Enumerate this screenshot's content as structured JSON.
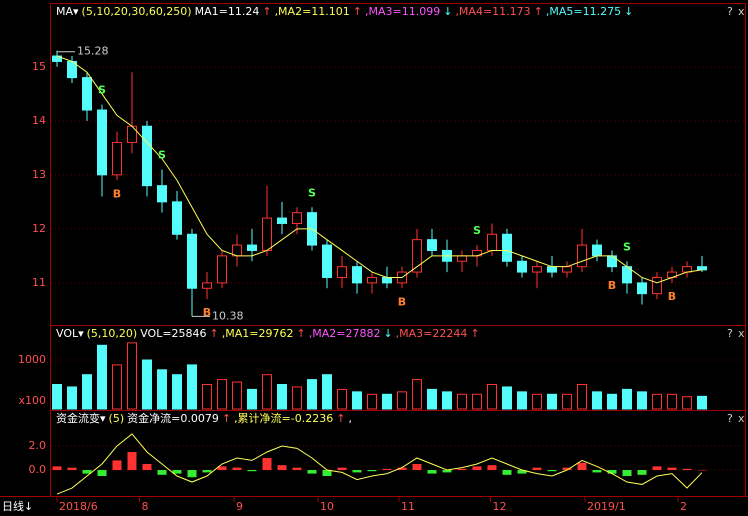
{
  "chart_data": [
    {
      "type": "candlestick",
      "header": [
        {
          "text": "MA▾",
          "color": "#ffffff"
        },
        {
          "text": "(5,10,20,30,60,250)",
          "color": "#ffff54"
        },
        {
          "text": "MA1=11.24",
          "color": "#ffffff"
        },
        {
          "text": "↑",
          "color": "#ff5050"
        },
        {
          "text": ",MA2=11.101",
          "color": "#ffff54"
        },
        {
          "text": "↑",
          "color": "#ff5050"
        },
        {
          "text": ",MA3=11.099",
          "color": "#ff54ff"
        },
        {
          "text": "↓",
          "color": "#54fcfc"
        },
        {
          "text": ",MA4=11.173",
          "color": "#ff5050"
        },
        {
          "text": "↑",
          "color": "#ff5050"
        },
        {
          "text": ",MA5=11.275",
          "color": "#54fcfc"
        },
        {
          "text": "↓",
          "color": "#54fcfc"
        }
      ],
      "ohlc": [
        [
          15.2,
          15.3,
          15.0,
          15.1
        ],
        [
          15.1,
          15.2,
          14.7,
          14.8
        ],
        [
          14.8,
          14.9,
          14.0,
          14.2
        ],
        [
          14.2,
          14.3,
          12.6,
          13.0
        ],
        [
          13.0,
          13.8,
          12.9,
          13.6
        ],
        [
          13.6,
          14.9,
          13.4,
          13.9
        ],
        [
          13.9,
          14.0,
          12.6,
          12.8
        ],
        [
          12.8,
          13.1,
          12.3,
          12.5
        ],
        [
          12.5,
          12.7,
          11.8,
          11.9
        ],
        [
          11.9,
          12.0,
          10.38,
          10.9
        ],
        [
          10.9,
          11.2,
          10.7,
          11.0
        ],
        [
          11.0,
          11.6,
          10.9,
          11.5
        ],
        [
          11.5,
          11.9,
          11.3,
          11.7
        ],
        [
          11.7,
          12.0,
          11.4,
          11.6
        ],
        [
          11.6,
          12.8,
          11.5,
          12.2
        ],
        [
          12.2,
          12.5,
          11.9,
          12.1
        ],
        [
          12.1,
          12.4,
          11.9,
          12.3
        ],
        [
          12.3,
          12.4,
          11.6,
          11.7
        ],
        [
          11.7,
          11.8,
          10.9,
          11.1
        ],
        [
          11.1,
          11.5,
          10.9,
          11.3
        ],
        [
          11.3,
          11.4,
          10.8,
          11.0
        ],
        [
          11.0,
          11.2,
          10.8,
          11.1
        ],
        [
          11.1,
          11.3,
          10.9,
          11.0
        ],
        [
          11.0,
          11.3,
          10.9,
          11.2
        ],
        [
          11.2,
          12.0,
          11.1,
          11.8
        ],
        [
          11.8,
          12.0,
          11.5,
          11.6
        ],
        [
          11.6,
          11.8,
          11.2,
          11.4
        ],
        [
          11.4,
          11.6,
          11.2,
          11.5
        ],
        [
          11.5,
          11.7,
          11.3,
          11.6
        ],
        [
          11.6,
          12.1,
          11.5,
          11.9
        ],
        [
          11.9,
          12.0,
          11.3,
          11.4
        ],
        [
          11.4,
          11.5,
          11.1,
          11.2
        ],
        [
          11.2,
          11.4,
          10.9,
          11.3
        ],
        [
          11.3,
          11.5,
          11.1,
          11.2
        ],
        [
          11.2,
          11.4,
          11.1,
          11.3
        ],
        [
          11.3,
          12.0,
          11.2,
          11.7
        ],
        [
          11.7,
          11.8,
          11.4,
          11.5
        ],
        [
          11.5,
          11.6,
          11.2,
          11.3
        ],
        [
          11.3,
          11.4,
          10.8,
          11.0
        ],
        [
          11.0,
          11.1,
          10.6,
          10.8
        ],
        [
          10.8,
          11.2,
          10.7,
          11.1
        ],
        [
          11.1,
          11.3,
          11.0,
          11.2
        ],
        [
          11.2,
          11.4,
          11.1,
          11.3
        ],
        [
          11.3,
          11.5,
          11.2,
          11.24
        ]
      ],
      "up_color": "#ff3232",
      "down_color": "#54fcfc",
      "ma": {
        "color": "#ffff54",
        "values": [
          15.2,
          15.1,
          14.9,
          14.5,
          14.1,
          13.9,
          13.6,
          13.3,
          12.9,
          12.4,
          11.9,
          11.6,
          11.5,
          11.5,
          11.6,
          11.8,
          12.0,
          12.0,
          11.8,
          11.6,
          11.4,
          11.2,
          11.1,
          11.1,
          11.3,
          11.5,
          11.5,
          11.5,
          11.5,
          11.6,
          11.6,
          11.5,
          11.4,
          11.3,
          11.3,
          11.4,
          11.5,
          11.5,
          11.3,
          11.1,
          11.0,
          11.1,
          11.2,
          11.24
        ]
      },
      "signals": [
        {
          "index": 3,
          "label": "S"
        },
        {
          "index": 4,
          "label": "B"
        },
        {
          "index": 7,
          "label": "S"
        },
        {
          "index": 10,
          "label": "B"
        },
        {
          "index": 17,
          "label": "S"
        },
        {
          "index": 23,
          "label": "B"
        },
        {
          "index": 28,
          "label": "S"
        },
        {
          "index": 37,
          "label": "B"
        },
        {
          "index": 38,
          "label": "S"
        },
        {
          "index": 41,
          "label": "B"
        }
      ],
      "annotations": [
        {
          "index": 0,
          "value": 15.28
        },
        {
          "index": 9,
          "value": 10.38
        }
      ],
      "ylim": [
        10.22,
        15.83
      ],
      "yticks": [
        11,
        12,
        13,
        14,
        15
      ]
    },
    {
      "type": "bar",
      "header": [
        {
          "text": "VOL▾",
          "color": "#ffffff"
        },
        {
          "text": "(5,10,20)",
          "color": "#ffff54"
        },
        {
          "text": "VOL=25846",
          "color": "#ffffff"
        },
        {
          "text": "↑",
          "color": "#ff5050"
        },
        {
          "text": ",MA1=29762",
          "color": "#ffff54"
        },
        {
          "text": "↑",
          "color": "#ff5050"
        },
        {
          "text": ",MA2=27882",
          "color": "#ff54ff"
        },
        {
          "text": "↓",
          "color": "#54fcfc"
        },
        {
          "text": ",MA3=22244",
          "color": "#ff5050"
        },
        {
          "text": "↑",
          "color": "#ff5050"
        }
      ],
      "values": [
        500,
        450,
        700,
        1300,
        900,
        1350,
        1000,
        800,
        700,
        900,
        500,
        600,
        550,
        400,
        700,
        500,
        450,
        600,
        700,
        400,
        350,
        300,
        300,
        350,
        600,
        400,
        350,
        300,
        300,
        500,
        450,
        350,
        300,
        300,
        300,
        500,
        350,
        300,
        400,
        350,
        300,
        300,
        250,
        258.46
      ],
      "unit_label": "x100",
      "ylim": [
        0,
        1347
      ],
      "yticks": [
        1000
      ]
    },
    {
      "type": "bar",
      "header": [
        {
          "text": "资金流变▾",
          "color": "#ffffff"
        },
        {
          "text": "(5)",
          "color": "#ffff54"
        },
        {
          "text": "资金净流=0.0079",
          "color": "#ffffff"
        },
        {
          "text": "↑",
          "color": "#ff5050"
        },
        {
          "text": ",累计净流=-0.2236",
          "color": "#ffff54"
        },
        {
          "text": "↑",
          "color": "#ff5050"
        },
        {
          "text": ",",
          "color": "#ffffff"
        }
      ],
      "values": [
        0.3,
        0.2,
        -0.3,
        -0.5,
        0.8,
        1.5,
        0.5,
        -0.4,
        -0.3,
        -0.6,
        -0.2,
        0.3,
        0.2,
        -0.1,
        1.0,
        0.4,
        0.2,
        -0.3,
        -0.5,
        0.2,
        -0.2,
        -0.1,
        0.1,
        0.2,
        0.5,
        -0.3,
        -0.2,
        0.1,
        0.3,
        0.4,
        -0.4,
        -0.3,
        0.2,
        -0.1,
        0.2,
        0.6,
        -0.2,
        -0.3,
        -0.5,
        -0.4,
        0.3,
        0.2,
        0.1,
        0.0079
      ],
      "line": {
        "color": "#ffff54",
        "values": [
          -2.0,
          -1.5,
          -0.5,
          0.5,
          2.0,
          3.0,
          1.5,
          0.5,
          -0.5,
          -1.0,
          -0.5,
          0.5,
          1.0,
          0.8,
          1.5,
          2.0,
          1.8,
          1.0,
          0.0,
          -0.2,
          -0.8,
          -0.5,
          -0.3,
          0.2,
          1.0,
          0.5,
          0.0,
          0.2,
          0.5,
          1.0,
          0.5,
          0.0,
          -0.3,
          -0.5,
          0.0,
          0.8,
          0.3,
          -0.3,
          -1.0,
          -1.2,
          -0.5,
          -0.3,
          -1.5,
          -0.2236
        ]
      },
      "up_color": "#ff3232",
      "down_color": "#33ee33",
      "ylim": [
        -2.08,
        3.33
      ],
      "yticks": [
        {
          "value": 0,
          "label": "0.0"
        },
        {
          "value": 2,
          "label": "2.0"
        }
      ],
      "period_label": "日线↓",
      "xticks": [
        {
          "value": 0,
          "label": "2018/6"
        },
        {
          "value": 5.5,
          "label": "8"
        },
        {
          "value": 11.8,
          "label": "9"
        },
        {
          "value": 17.4,
          "label": "10"
        },
        {
          "value": 22.8,
          "label": "11"
        },
        {
          "value": 28.9,
          "label": "12"
        },
        {
          "value": 35.2,
          "label": "2019/1"
        },
        {
          "value": 41.4,
          "label": "2"
        }
      ]
    }
  ]
}
